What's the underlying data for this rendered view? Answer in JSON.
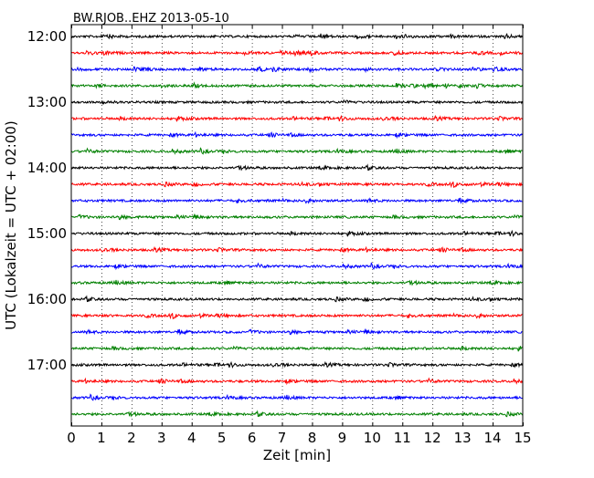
{
  "chart_data": {
    "type": "line",
    "title": "BW.RJOB..EHZ 2013-05-10",
    "xlabel": "Zeit  [min]",
    "ylabel": "UTC (Lokalzeit = UTC + 02:00)",
    "xlim": [
      0,
      15
    ],
    "xticks": [
      "0",
      "1",
      "2",
      "3",
      "4",
      "5",
      "6",
      "7",
      "8",
      "9",
      "10",
      "11",
      "12",
      "13",
      "14",
      "15"
    ],
    "yticks": [
      "12:00",
      "13:00",
      "14:00",
      "15:00",
      "16:00",
      "17:00"
    ],
    "grid": "vertical dotted",
    "trace_colors": [
      "#000000",
      "#ff0000",
      "#0000ff",
      "#008000"
    ],
    "traces": [
      {
        "start": "12:00",
        "color": "#000000"
      },
      {
        "start": "12:15",
        "color": "#ff0000"
      },
      {
        "start": "12:30",
        "color": "#0000ff"
      },
      {
        "start": "12:45",
        "color": "#008000"
      },
      {
        "start": "13:00",
        "color": "#000000"
      },
      {
        "start": "13:15",
        "color": "#ff0000"
      },
      {
        "start": "13:30",
        "color": "#0000ff"
      },
      {
        "start": "13:45",
        "color": "#008000"
      },
      {
        "start": "14:00",
        "color": "#000000"
      },
      {
        "start": "14:15",
        "color": "#ff0000"
      },
      {
        "start": "14:30",
        "color": "#0000ff"
      },
      {
        "start": "14:45",
        "color": "#008000"
      },
      {
        "start": "15:00",
        "color": "#000000"
      },
      {
        "start": "15:15",
        "color": "#ff0000"
      },
      {
        "start": "15:30",
        "color": "#0000ff"
      },
      {
        "start": "15:45",
        "color": "#008000"
      },
      {
        "start": "16:00",
        "color": "#000000"
      },
      {
        "start": "16:15",
        "color": "#ff0000"
      },
      {
        "start": "16:30",
        "color": "#0000ff"
      },
      {
        "start": "16:45",
        "color": "#008000"
      },
      {
        "start": "17:00",
        "color": "#000000"
      },
      {
        "start": "17:15",
        "color": "#ff0000"
      },
      {
        "start": "17:30",
        "color": "#0000ff"
      },
      {
        "start": "17:45",
        "color": "#008000"
      }
    ]
  }
}
